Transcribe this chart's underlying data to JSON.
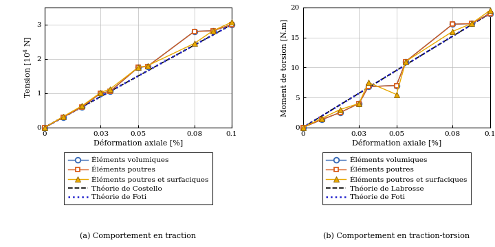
{
  "x_pts": [
    0,
    0.01,
    0.02,
    0.03,
    0.035,
    0.05,
    0.055,
    0.08,
    0.09,
    0.1
  ],
  "y_vol_t": [
    0,
    0.3,
    0.6,
    1.0,
    1.05,
    1.75,
    1.78,
    2.8,
    2.82,
    3.0
  ],
  "y_pou_t": [
    0,
    0.3,
    0.6,
    1.0,
    1.05,
    1.75,
    1.78,
    2.8,
    2.82,
    3.0
  ],
  "y_sur_t": [
    0,
    0.32,
    0.63,
    1.02,
    1.12,
    1.75,
    1.8,
    2.45,
    2.82,
    3.07
  ],
  "y_vol_tor": [
    0,
    1.3,
    2.5,
    4.0,
    6.8,
    7.0,
    11.0,
    17.2,
    17.3,
    19.0
  ],
  "y_pou_tor": [
    0,
    1.3,
    2.5,
    4.0,
    6.8,
    7.0,
    11.0,
    17.2,
    17.3,
    19.0
  ],
  "y_sur_tor": [
    0,
    1.5,
    3.0,
    4.0,
    7.5,
    5.5,
    11.0,
    16.0,
    17.3,
    19.5
  ],
  "slope_t": 30.0,
  "slope_tor": 190.0,
  "color_vol": "#3567b5",
  "color_poutre": "#d95f1e",
  "color_surf": "#e8a800",
  "color_black": "#111111",
  "color_blue_dot": "#2020cc",
  "xlabel": "Déformation axiale [%]",
  "ylabel_left": "Tension [$10^4$ N]",
  "ylabel_right": "Moment de torsion [N.m]",
  "xlim": [
    0,
    0.1
  ],
  "ylim_left": [
    0,
    3.5
  ],
  "ylim_right": [
    0,
    20
  ],
  "xticks": [
    0,
    0.03,
    0.05,
    0.08,
    0.1
  ],
  "yticks_left": [
    0,
    1,
    2,
    3
  ],
  "yticks_right": [
    0,
    5,
    10,
    15,
    20
  ],
  "legend_left": [
    "Éléments volumiques",
    "Éléments poutres",
    "Éléments poutres et surfaciques",
    "Théorie de Costello",
    "Théorie de Foti"
  ],
  "legend_right": [
    "Éléments volumiques",
    "Éléments poutres",
    "Éléments poutres et surfaciques",
    "Théorie de Labrosse",
    "Théorie de Foti"
  ],
  "subcap_left": "(a) Comportement en traction",
  "subcap_right": "(b) Comportement en traction-torsion"
}
